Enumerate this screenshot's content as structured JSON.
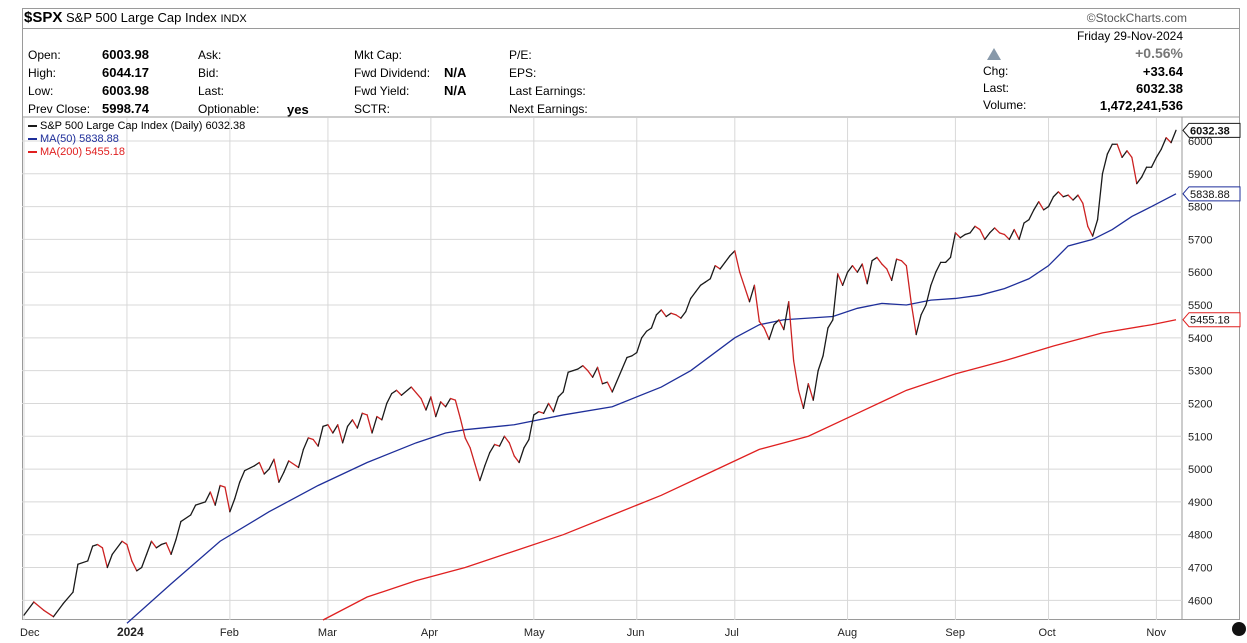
{
  "header": {
    "ticker": "$SPX",
    "name": "S&P 500 Large Cap Index",
    "exchange": "INDX",
    "brand": "©StockCharts.com"
  },
  "quote": {
    "open_label": "Open:",
    "open": "6003.98",
    "high_label": "High:",
    "high": "6044.17",
    "low_label": "Low:",
    "low": "6003.98",
    "prev_close_label": "Prev Close:",
    "prev_close": "5998.74",
    "ask_label": "Ask:",
    "bid_label": "Bid:",
    "last_label_left": "Last:",
    "optionable_label": "Optionable:",
    "optionable": "yes",
    "mkt_cap_label": "Mkt Cap:",
    "fwd_dividend_label": "Fwd Dividend:",
    "fwd_dividend": "N/A",
    "fwd_yield_label": "Fwd Yield:",
    "fwd_yield": "N/A",
    "sctr_label": "SCTR:",
    "pe_label": "P/E:",
    "eps_label": "EPS:",
    "last_earnings_label": "Last Earnings:",
    "next_earnings_label": "Next Earnings:",
    "date": "Friday  29-Nov-2024",
    "pct_change": "+0.56%",
    "chg_label": "Chg:",
    "chg": "+33.64",
    "last_label": "Last:",
    "last": "6032.38",
    "volume_label": "Volume:",
    "volume": "1,472,241,536"
  },
  "colors": {
    "price": "#1a1a1a",
    "down": "#cc2222",
    "ma50": "#1f2f9a",
    "ma200": "#e02020",
    "grid": "#d8d8d8",
    "up_arrow": "#8899aa",
    "pct_change": "#777777"
  },
  "chart_data": {
    "type": "line",
    "legend": [
      "S&P 500 Large Cap Index (Daily) 6032.38",
      "MA(50) 5838.88",
      "MA(200) 5455.18"
    ],
    "legend_placement": "top-left",
    "grid": true,
    "y_axis_side": "right",
    "ylim": [
      4540,
      6070
    ],
    "y_ticks": [
      4600,
      4700,
      4800,
      4900,
      5000,
      5100,
      5200,
      5300,
      5400,
      5500,
      5600,
      5700,
      5800,
      5900,
      6000
    ],
    "x_tick_labels": [
      {
        "label": "Dec",
        "bold": false
      },
      {
        "label": "2024",
        "bold": true
      },
      {
        "label": "Feb",
        "bold": false
      },
      {
        "label": "Mar",
        "bold": false
      },
      {
        "label": "Apr",
        "bold": false
      },
      {
        "label": "May",
        "bold": false
      },
      {
        "label": "Jun",
        "bold": false
      },
      {
        "label": "Jul",
        "bold": false
      },
      {
        "label": "Aug",
        "bold": false
      },
      {
        "label": "Sep",
        "bold": false
      },
      {
        "label": "Oct",
        "bold": false
      },
      {
        "label": "Nov",
        "bold": false
      }
    ],
    "x_month_index": [
      0,
      21,
      42,
      62,
      83,
      104,
      125,
      145,
      168,
      190,
      209,
      231
    ],
    "last_labels": [
      {
        "text": "6032.38",
        "value": 6032.38,
        "series": "price",
        "bold": true
      },
      {
        "text": "5838.88",
        "value": 5838.88,
        "series": "ma50",
        "bold": false
      },
      {
        "text": "5455.18",
        "value": 5455.18,
        "series": "ma200",
        "bold": false
      }
    ],
    "series": [
      {
        "name": "S&P 500 Large Cap Index (Daily)",
        "anchors": [
          [
            0,
            4555
          ],
          [
            2,
            4595
          ],
          [
            4,
            4570
          ],
          [
            6,
            4550
          ],
          [
            8,
            4590
          ],
          [
            10,
            4625
          ],
          [
            11,
            4710
          ],
          [
            13,
            4720
          ],
          [
            14,
            4765
          ],
          [
            15,
            4770
          ],
          [
            16,
            4760
          ],
          [
            17,
            4700
          ],
          [
            18,
            4740
          ],
          [
            20,
            4780
          ],
          [
            21,
            4770
          ],
          [
            22,
            4720
          ],
          [
            23,
            4690
          ],
          [
            24,
            4700
          ],
          [
            25,
            4740
          ],
          [
            26,
            4780
          ],
          [
            27,
            4760
          ],
          [
            28,
            4770
          ],
          [
            29,
            4775
          ],
          [
            30,
            4740
          ],
          [
            31,
            4785
          ],
          [
            32,
            4840
          ],
          [
            34,
            4860
          ],
          [
            35,
            4890
          ],
          [
            37,
            4900
          ],
          [
            38,
            4930
          ],
          [
            39,
            4890
          ],
          [
            40,
            4950
          ],
          [
            41,
            4945
          ],
          [
            42,
            4870
          ],
          [
            43,
            4910
          ],
          [
            44,
            4960
          ],
          [
            45,
            4995
          ],
          [
            47,
            5010
          ],
          [
            48,
            5020
          ],
          [
            49,
            4985
          ],
          [
            50,
            5000
          ],
          [
            51,
            5030
          ],
          [
            52,
            4960
          ],
          [
            53,
            4990
          ],
          [
            54,
            5025
          ],
          [
            56,
            5005
          ],
          [
            57,
            5060
          ],
          [
            58,
            5095
          ],
          [
            59,
            5090
          ],
          [
            60,
            5070
          ],
          [
            61,
            5130
          ],
          [
            62,
            5135
          ],
          [
            63,
            5110
          ],
          [
            64,
            5135
          ],
          [
            65,
            5080
          ],
          [
            66,
            5130
          ],
          [
            67,
            5150
          ],
          [
            68,
            5125
          ],
          [
            69,
            5170
          ],
          [
            70,
            5165
          ],
          [
            71,
            5110
          ],
          [
            72,
            5160
          ],
          [
            73,
            5150
          ],
          [
            74,
            5200
          ],
          [
            75,
            5230
          ],
          [
            76,
            5240
          ],
          [
            77,
            5225
          ],
          [
            79,
            5250
          ],
          [
            81,
            5215
          ],
          [
            82,
            5180
          ],
          [
            83,
            5220
          ],
          [
            84,
            5160
          ],
          [
            85,
            5205
          ],
          [
            86,
            5190
          ],
          [
            87,
            5215
          ],
          [
            88,
            5210
          ],
          [
            89,
            5155
          ],
          [
            90,
            5095
          ],
          [
            91,
            5065
          ],
          [
            92,
            5015
          ],
          [
            93,
            4965
          ],
          [
            94,
            5010
          ],
          [
            95,
            5050
          ],
          [
            96,
            5075
          ],
          [
            97,
            5070
          ],
          [
            98,
            5100
          ],
          [
            99,
            5080
          ],
          [
            100,
            5040
          ],
          [
            101,
            5020
          ],
          [
            102,
            5065
          ],
          [
            103,
            5090
          ],
          [
            104,
            5165
          ],
          [
            105,
            5175
          ],
          [
            106,
            5170
          ],
          [
            107,
            5200
          ],
          [
            108,
            5175
          ],
          [
            109,
            5220
          ],
          [
            110,
            5235
          ],
          [
            111,
            5295
          ],
          [
            112,
            5300
          ],
          [
            113,
            5305
          ],
          [
            114,
            5315
          ],
          [
            115,
            5300
          ],
          [
            116,
            5280
          ],
          [
            117,
            5310
          ],
          [
            118,
            5260
          ],
          [
            119,
            5265
          ],
          [
            120,
            5235
          ],
          [
            122,
            5305
          ],
          [
            123,
            5340
          ],
          [
            124,
            5345
          ],
          [
            125,
            5355
          ],
          [
            126,
            5400
          ],
          [
            127,
            5420
          ],
          [
            128,
            5430
          ],
          [
            129,
            5470
          ],
          [
            130,
            5485
          ],
          [
            131,
            5465
          ],
          [
            132,
            5475
          ],
          [
            133,
            5470
          ],
          [
            134,
            5460
          ],
          [
            135,
            5480
          ],
          [
            136,
            5520
          ],
          [
            137,
            5540
          ],
          [
            138,
            5560
          ],
          [
            139,
            5570
          ],
          [
            140,
            5580
          ],
          [
            141,
            5620
          ],
          [
            142,
            5610
          ],
          [
            143,
            5630
          ],
          [
            144,
            5650
          ],
          [
            145,
            5665
          ],
          [
            146,
            5600
          ],
          [
            147,
            5555
          ],
          [
            148,
            5510
          ],
          [
            149,
            5560
          ],
          [
            150,
            5450
          ],
          [
            151,
            5430
          ],
          [
            152,
            5395
          ],
          [
            153,
            5440
          ],
          [
            154,
            5455
          ],
          [
            155,
            5425
          ],
          [
            156,
            5510
          ],
          [
            157,
            5330
          ],
          [
            158,
            5240
          ],
          [
            159,
            5185
          ],
          [
            160,
            5260
          ],
          [
            161,
            5210
          ],
          [
            162,
            5300
          ],
          [
            163,
            5345
          ],
          [
            164,
            5430
          ],
          [
            165,
            5455
          ],
          [
            166,
            5595
          ],
          [
            167,
            5560
          ],
          [
            168,
            5600
          ],
          [
            169,
            5620
          ],
          [
            170,
            5600
          ],
          [
            171,
            5625
          ],
          [
            172,
            5565
          ],
          [
            173,
            5635
          ],
          [
            174,
            5645
          ],
          [
            175,
            5625
          ],
          [
            176,
            5610
          ],
          [
            177,
            5575
          ],
          [
            178,
            5640
          ],
          [
            179,
            5635
          ],
          [
            180,
            5620
          ],
          [
            181,
            5505
          ],
          [
            182,
            5410
          ],
          [
            183,
            5470
          ],
          [
            184,
            5500
          ],
          [
            185,
            5560
          ],
          [
            186,
            5600
          ],
          [
            187,
            5630
          ],
          [
            188,
            5630
          ],
          [
            189,
            5645
          ],
          [
            190,
            5720
          ],
          [
            191,
            5705
          ],
          [
            192,
            5715
          ],
          [
            193,
            5720
          ],
          [
            194,
            5740
          ],
          [
            195,
            5730
          ],
          [
            196,
            5700
          ],
          [
            197,
            5720
          ],
          [
            198,
            5735
          ],
          [
            199,
            5720
          ],
          [
            200,
            5715
          ],
          [
            201,
            5700
          ],
          [
            202,
            5730
          ],
          [
            203,
            5700
          ],
          [
            204,
            5750
          ],
          [
            205,
            5760
          ],
          [
            206,
            5790
          ],
          [
            207,
            5815
          ],
          [
            208,
            5790
          ],
          [
            209,
            5800
          ],
          [
            210,
            5830
          ],
          [
            211,
            5845
          ],
          [
            212,
            5830
          ],
          [
            213,
            5835
          ],
          [
            214,
            5820
          ],
          [
            215,
            5835
          ],
          [
            216,
            5810
          ],
          [
            217,
            5740
          ],
          [
            218,
            5710
          ],
          [
            219,
            5760
          ],
          [
            220,
            5900
          ],
          [
            221,
            5960
          ],
          [
            222,
            5990
          ],
          [
            223,
            5990
          ],
          [
            224,
            5950
          ],
          [
            225,
            5970
          ],
          [
            226,
            5950
          ],
          [
            227,
            5870
          ],
          [
            228,
            5890
          ],
          [
            229,
            5920
          ],
          [
            230,
            5920
          ],
          [
            231,
            5950
          ],
          [
            232,
            5975
          ],
          [
            233,
            6010
          ],
          [
            234,
            5995
          ],
          [
            235,
            6032.38
          ]
        ]
      },
      {
        "name": "MA(50)",
        "anchors": [
          [
            21,
            4530
          ],
          [
            30,
            4650
          ],
          [
            40,
            4780
          ],
          [
            50,
            4870
          ],
          [
            60,
            4950
          ],
          [
            70,
            5020
          ],
          [
            80,
            5080
          ],
          [
            86,
            5110
          ],
          [
            90,
            5120
          ],
          [
            100,
            5135
          ],
          [
            110,
            5165
          ],
          [
            120,
            5190
          ],
          [
            130,
            5250
          ],
          [
            136,
            5300
          ],
          [
            145,
            5400
          ],
          [
            150,
            5440
          ],
          [
            155,
            5455
          ],
          [
            160,
            5460
          ],
          [
            165,
            5465
          ],
          [
            170,
            5490
          ],
          [
            175,
            5505
          ],
          [
            180,
            5500
          ],
          [
            185,
            5515
          ],
          [
            190,
            5520
          ],
          [
            195,
            5530
          ],
          [
            200,
            5550
          ],
          [
            205,
            5580
          ],
          [
            209,
            5620
          ],
          [
            213,
            5680
          ],
          [
            218,
            5700
          ],
          [
            222,
            5730
          ],
          [
            226,
            5770
          ],
          [
            230,
            5800
          ],
          [
            235,
            5838.88
          ]
        ]
      },
      {
        "name": "MA(200)",
        "anchors": [
          [
            61,
            4540
          ],
          [
            70,
            4610
          ],
          [
            80,
            4660
          ],
          [
            90,
            4700
          ],
          [
            100,
            4750
          ],
          [
            110,
            4800
          ],
          [
            120,
            4860
          ],
          [
            130,
            4920
          ],
          [
            140,
            4990
          ],
          [
            145,
            5025
          ],
          [
            150,
            5060
          ],
          [
            155,
            5080
          ],
          [
            160,
            5100
          ],
          [
            170,
            5170
          ],
          [
            180,
            5240
          ],
          [
            190,
            5290
          ],
          [
            200,
            5330
          ],
          [
            210,
            5375
          ],
          [
            220,
            5415
          ],
          [
            230,
            5440
          ],
          [
            235,
            5455.18
          ]
        ]
      }
    ],
    "n_days": 236
  }
}
